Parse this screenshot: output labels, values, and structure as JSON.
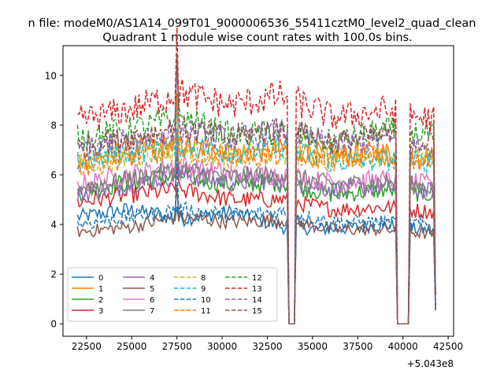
{
  "chart_data": {
    "type": "line",
    "suptitle": "n file: modeM0/AS1A14_099T01_9000006536_55411cztM0_level2_quad_clean",
    "title": "Quadrant 1 module wise count rates with 100.0s bins.",
    "xlabel": "",
    "ylabel": "",
    "x_offset_label": "+5.043e8",
    "xlim": [
      21200,
      42800
    ],
    "ylim": [
      -0.5,
      11.2
    ],
    "x_ticks": [
      22500,
      25000,
      27500,
      30000,
      32500,
      35000,
      37500,
      40000,
      42500
    ],
    "x_tick_labels": [
      "22500",
      "25000",
      "27500",
      "30000",
      "32500",
      "35000",
      "37500",
      "40000",
      "42500"
    ],
    "y_ticks": [
      0,
      2,
      4,
      6,
      8,
      10
    ],
    "y_tick_labels": [
      "0",
      "2",
      "4",
      "6",
      "8",
      "10"
    ],
    "x_range": [
      22000,
      41800
    ],
    "bin_seconds": 100,
    "gaps": [
      [
        33650,
        34000
      ],
      [
        39650,
        40350
      ]
    ],
    "spike": {
      "x": 27500,
      "deltas": [
        0.5,
        3.0
      ]
    },
    "dip": {
      "x": 27450,
      "value": 2.6
    },
    "legend_position": "lower-left",
    "series": [
      {
        "name": "0",
        "color": "#1f77b4",
        "dash": "solid",
        "levels": [
          4.3,
          4.6,
          4.2,
          4.5,
          3.9,
          3.8,
          4.0,
          3.7
        ]
      },
      {
        "name": "1",
        "color": "#ff7f0e",
        "dash": "solid",
        "levels": [
          6.6,
          7.0,
          7.2,
          6.9,
          7.0,
          6.8,
          6.9,
          6.7
        ]
      },
      {
        "name": "2",
        "color": "#2ca02c",
        "dash": "solid",
        "levels": [
          5.3,
          5.7,
          6.0,
          5.6,
          5.7,
          5.2,
          5.4,
          5.2
        ]
      },
      {
        "name": "3",
        "color": "#d62728",
        "dash": "solid",
        "levels": [
          4.9,
          5.2,
          5.4,
          5.0,
          5.0,
          4.6,
          4.7,
          4.5
        ]
      },
      {
        "name": "4",
        "color": "#9467bd",
        "dash": "solid",
        "levels": [
          5.2,
          5.6,
          6.0,
          5.7,
          5.8,
          5.4,
          5.5,
          5.3
        ]
      },
      {
        "name": "5",
        "color": "#8c564b",
        "dash": "solid",
        "levels": [
          3.7,
          3.9,
          4.3,
          4.1,
          4.2,
          3.8,
          3.8,
          3.6
        ]
      },
      {
        "name": "6",
        "color": "#e377c2",
        "dash": "solid",
        "levels": [
          5.6,
          6.0,
          6.4,
          6.0,
          6.0,
          5.7,
          5.8,
          5.6
        ]
      },
      {
        "name": "7",
        "color": "#7f7f7f",
        "dash": "solid",
        "levels": [
          5.5,
          5.8,
          6.2,
          5.9,
          6.0,
          5.6,
          5.7,
          5.5
        ]
      },
      {
        "name": "8",
        "color": "#bcbd22",
        "dash": "dashed",
        "levels": [
          6.4,
          6.7,
          7.0,
          6.8,
          6.9,
          6.7,
          6.8,
          6.6
        ]
      },
      {
        "name": "9",
        "color": "#17becf",
        "dash": "dashed",
        "levels": [
          6.5,
          6.9,
          7.2,
          6.9,
          7.1,
          6.5,
          6.6,
          6.5
        ]
      },
      {
        "name": "10",
        "color": "#1f77b4",
        "dash": "dashed",
        "levels": [
          4.0,
          4.3,
          4.6,
          4.4,
          4.5,
          4.1,
          4.1,
          4.0
        ]
      },
      {
        "name": "11",
        "color": "#ff7f0e",
        "dash": "dashed",
        "levels": [
          6.3,
          6.7,
          7.0,
          6.7,
          6.8,
          6.6,
          6.7,
          6.5
        ]
      },
      {
        "name": "12",
        "color": "#2ca02c",
        "dash": "dashed",
        "levels": [
          7.5,
          7.8,
          8.3,
          7.6,
          7.7,
          7.3,
          7.8,
          7.6
        ]
      },
      {
        "name": "13",
        "color": "#d62728",
        "dash": "dashed",
        "levels": [
          8.2,
          8.6,
          9.3,
          8.8,
          9.2,
          8.3,
          8.6,
          8.2
        ]
      },
      {
        "name": "14",
        "color": "#9467bd",
        "dash": "dashed",
        "levels": [
          7.0,
          7.4,
          7.8,
          7.4,
          7.8,
          7.2,
          7.4,
          7.0
        ]
      },
      {
        "name": "15",
        "color": "#8c564b",
        "dash": "dashed",
        "levels": [
          7.1,
          7.5,
          7.9,
          7.5,
          7.9,
          7.3,
          7.6,
          7.2
        ]
      }
    ]
  }
}
